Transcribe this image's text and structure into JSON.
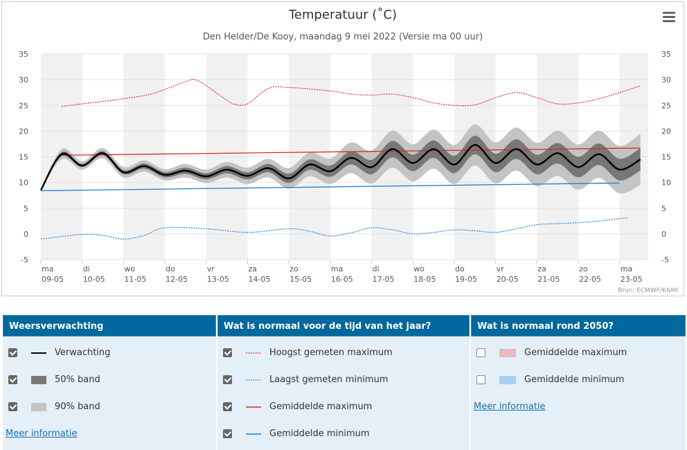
{
  "chart_data": {
    "type": "line",
    "title": "Temperatuur (˚C)",
    "subtitle": "Den Helder/De Kooy, maandag 9 mei 2022 (Versie ma 00 uur)",
    "credit": "Bron: ECMWF/KNMI",
    "ylim": [
      -5,
      35
    ],
    "yticks": [
      35,
      30,
      25,
      20,
      15,
      10,
      5,
      0,
      -5
    ],
    "x_unit": "days since 09-05",
    "xticks": [
      {
        "day": "ma",
        "date": "09-05"
      },
      {
        "day": "di",
        "date": "10-05"
      },
      {
        "day": "wo",
        "date": "11-05"
      },
      {
        "day": "do",
        "date": "12-05"
      },
      {
        "day": "vr",
        "date": "13-05"
      },
      {
        "day": "za",
        "date": "14-05"
      },
      {
        "day": "zo",
        "date": "15-05"
      },
      {
        "day": "ma",
        "date": "16-05"
      },
      {
        "day": "di",
        "date": "17-05"
      },
      {
        "day": "wo",
        "date": "18-05"
      },
      {
        "day": "do",
        "date": "19-05"
      },
      {
        "day": "vr",
        "date": "20-05"
      },
      {
        "day": "za",
        "date": "21-05"
      },
      {
        "day": "zo",
        "date": "22-05"
      },
      {
        "day": "ma",
        "date": "23-05"
      }
    ],
    "grid": true,
    "colors": {
      "forecast": "#000000",
      "band50": "#777777",
      "band90": "#c4c4c4",
      "record_max": "#e03030",
      "record_min": "#2a7fd0",
      "mean_max": "#d42a2a",
      "mean_min": "#1a7fd4",
      "stripe": "#f1f1f1"
    },
    "forecast": {
      "x": [
        0,
        0.5,
        1,
        1.5,
        2,
        2.5,
        3,
        3.5,
        4,
        4.5,
        5,
        5.5,
        6,
        6.5,
        7,
        7.5,
        8,
        8.5,
        9,
        9.5,
        10,
        10.5,
        11,
        11.5,
        12,
        12.5,
        13,
        13.5,
        14,
        14.5
      ],
      "values": [
        8.5,
        15.5,
        13.3,
        15.7,
        12.0,
        13.2,
        11.5,
        12.3,
        11.2,
        12.5,
        11.3,
        12.8,
        10.8,
        13.5,
        12.2,
        14.8,
        13.0,
        16.5,
        13.8,
        16.5,
        13.5,
        17.3,
        13.8,
        16.5,
        13.5,
        15.7,
        13.0,
        15.5,
        12.5,
        14.5
      ],
      "band50_halfwidth": [
        0,
        0.4,
        0.3,
        0.4,
        0.4,
        0.5,
        0.5,
        0.6,
        0.6,
        0.7,
        0.7,
        0.8,
        0.9,
        1.0,
        1.1,
        1.3,
        1.4,
        1.6,
        1.6,
        1.7,
        1.7,
        1.8,
        1.8,
        1.9,
        1.9,
        2.0,
        2.0,
        2.1,
        2.1,
        2.2
      ],
      "band90_halfwidth": [
        0,
        1.0,
        0.8,
        1.0,
        1.0,
        1.1,
        1.1,
        1.3,
        1.3,
        1.5,
        1.6,
        1.8,
        2.0,
        2.3,
        2.5,
        3.0,
        3.2,
        3.6,
        3.6,
        3.8,
        3.8,
        4.0,
        4.0,
        4.2,
        4.2,
        4.4,
        4.4,
        4.6,
        4.6,
        5.0
      ]
    },
    "record_max": {
      "x": [
        0.5,
        1,
        2,
        2.7,
        3.5,
        3.8,
        4.5,
        4.7,
        5,
        5.5,
        6,
        7,
        7.5,
        8,
        8.5,
        9,
        9.5,
        10,
        10.5,
        11,
        11.5,
        12,
        12.5,
        13,
        13.5,
        14,
        14.5
      ],
      "values": [
        24.8,
        25.3,
        26.3,
        27.3,
        29.6,
        29.8,
        26,
        25.2,
        25.3,
        28.3,
        28.5,
        27.8,
        27.2,
        27,
        27.2,
        26.5,
        25.5,
        25,
        25.1,
        26.5,
        27.5,
        26.5,
        25.3,
        25.5,
        26.3,
        27.5,
        28.8
      ]
    },
    "record_min": {
      "x": [
        0,
        1,
        1.5,
        2,
        2.5,
        3,
        4,
        5,
        6,
        6.5,
        7,
        7.5,
        8,
        8.5,
        9,
        9.5,
        10,
        10.5,
        11,
        11.5,
        12,
        12.5,
        13,
        13.5,
        14,
        14.2
      ],
      "values": [
        -1,
        -0.1,
        -0.3,
        -1,
        -0.3,
        1.2,
        1,
        0.3,
        1,
        0.5,
        -0.4,
        0.2,
        1.2,
        0.8,
        0,
        0.3,
        0.8,
        0.6,
        0.3,
        1,
        1.8,
        2,
        2.2,
        2.5,
        3,
        3.1
      ]
    },
    "mean_max": {
      "x": [
        0.5,
        14.5
      ],
      "values": [
        15.3,
        16.7
      ]
    },
    "mean_min": {
      "x": [
        0,
        14
      ],
      "values": [
        8.4,
        9.9
      ]
    }
  },
  "legend": {
    "col1": {
      "header": "Weersverwachting",
      "items": [
        {
          "label": "Verwachting",
          "checked": true
        },
        {
          "label": "50% band",
          "checked": true
        },
        {
          "label": "90% band",
          "checked": true
        }
      ],
      "link": "Meer informatie"
    },
    "col2": {
      "header": "Wat is normaal voor de tijd van het jaar?",
      "items": [
        {
          "label": "Hoogst gemeten maximum",
          "checked": true
        },
        {
          "label": "Laagst gemeten minimum",
          "checked": true
        },
        {
          "label": "Gemiddelde maximum",
          "checked": true
        },
        {
          "label": "Gemiddelde minimum",
          "checked": true
        }
      ]
    },
    "col3": {
      "header": "Wat is normaal rond 2050?",
      "items": [
        {
          "label": "Gemiddelde maximum",
          "checked": false
        },
        {
          "label": "Gemiddelde minimum",
          "checked": false
        }
      ],
      "link": "Meer informatie",
      "swatch_colors": [
        "#e8b9bd",
        "#a9d0ee"
      ]
    }
  }
}
